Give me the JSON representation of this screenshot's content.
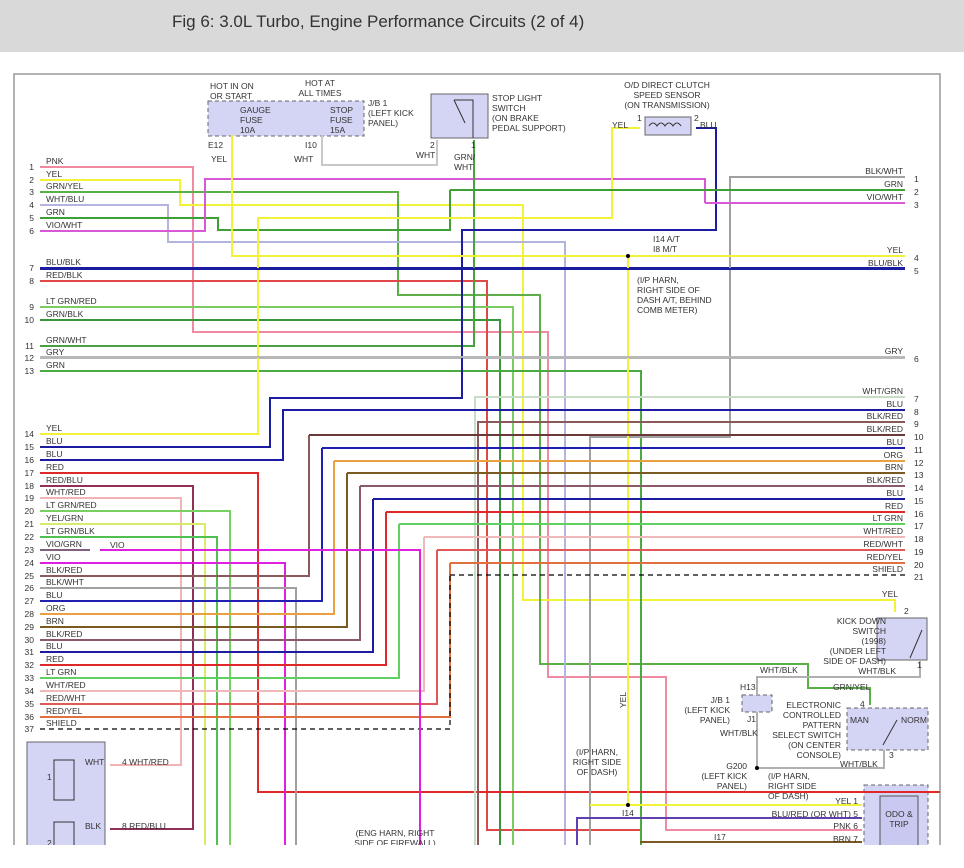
{
  "header": {
    "title": "Fig 6: 3.0L Turbo, Engine Performance Circuits (2 of 4)"
  },
  "left_pins": [
    {
      "num": "1",
      "label": "PNK",
      "color": "#f08aa0"
    },
    {
      "num": "2",
      "label": "YEL",
      "color": "#f2f238"
    },
    {
      "num": "3",
      "label": "GRN/YEL",
      "color": "#5cae48"
    },
    {
      "num": "4",
      "label": "WHT/BLU",
      "color": "#b4b4e0"
    },
    {
      "num": "5",
      "label": "GRN",
      "color": "#3f9f35"
    },
    {
      "num": "6",
      "label": "VIO/WHT",
      "color": "#d858d8"
    },
    {
      "num": "7",
      "label": "BLU/BLK",
      "color": "#1c1ca0"
    },
    {
      "num": "8",
      "label": "RED/BLK",
      "color": "#e04848"
    },
    {
      "num": "9",
      "label": "LT GRN/RED",
      "color": "#7acc62"
    },
    {
      "num": "10",
      "label": "GRN/BLK",
      "color": "#3a963a"
    },
    {
      "num": "11",
      "label": "GRN/WHT",
      "color": "#4aa040"
    },
    {
      "num": "12",
      "label": "GRY",
      "color": "#b8b8b8"
    },
    {
      "num": "13",
      "label": "GRN",
      "color": "#48aa40"
    },
    {
      "num": "14",
      "label": "YEL",
      "color": "#f2f238"
    },
    {
      "num": "15",
      "label": "BLU",
      "color": "#1c1ca0"
    },
    {
      "num": "16",
      "label": "BLU",
      "color": "#1c1ca0"
    },
    {
      "num": "17",
      "label": "RED",
      "color": "#e02828"
    },
    {
      "num": "18",
      "label": "RED/BLU",
      "color": "#903058"
    },
    {
      "num": "19",
      "label": "WHT/RED",
      "color": "#f0b4b4"
    },
    {
      "num": "20",
      "label": "LT GRN/RED",
      "color": "#78d060"
    },
    {
      "num": "21",
      "label": "YEL/GRN",
      "color": "#d8ec6a"
    },
    {
      "num": "22",
      "label": "LT GRN/BLK",
      "color": "#50c050"
    },
    {
      "num": "23",
      "label": "VIO/GRN",
      "color": "#806080"
    },
    {
      "num": "24",
      "label": "VIO",
      "color": "#e020e0"
    },
    {
      "num": "25",
      "label": "BLK/RED",
      "color": "#8a5a5a"
    },
    {
      "num": "26",
      "label": "BLK/WHT",
      "color": "#a0a0a0"
    },
    {
      "num": "27",
      "label": "BLU",
      "color": "#2020b0"
    },
    {
      "num": "28",
      "label": "ORG",
      "color": "#e8a040"
    },
    {
      "num": "29",
      "label": "BRN",
      "color": "#7a5a20"
    },
    {
      "num": "30",
      "label": "BLK/RED",
      "color": "#8a5a6a"
    },
    {
      "num": "31",
      "label": "BLU",
      "color": "#1c1ca0"
    },
    {
      "num": "32",
      "label": "RED",
      "color": "#e02828"
    },
    {
      "num": "33",
      "label": "LT GRN",
      "color": "#60d060"
    },
    {
      "num": "34",
      "label": "WHT/RED",
      "color": "#f0b8b8"
    },
    {
      "num": "35",
      "label": "RED/WHT",
      "color": "#e05858"
    },
    {
      "num": "36",
      "label": "RED/YEL",
      "color": "#e07040"
    },
    {
      "num": "37",
      "label": "SHIELD",
      "color": "#000000"
    }
  ],
  "right_pins": [
    {
      "num": "1",
      "label": "BLK/WHT",
      "color": "#a0a0a0"
    },
    {
      "num": "2",
      "label": "GRN",
      "color": "#3f9f35"
    },
    {
      "num": "3",
      "label": "VIO/WHT",
      "color": "#d858d8"
    },
    {
      "num": "4",
      "label": "YEL",
      "color": "#f2f238"
    },
    {
      "num": "5",
      "label": "BLU/BLK",
      "color": "#1c1ca0"
    },
    {
      "num": "6",
      "label": "GRY",
      "color": "#b8b8b8"
    },
    {
      "num": "7",
      "label": "WHT/GRN",
      "color": "#c8dcc8"
    },
    {
      "num": "8",
      "label": "BLU",
      "color": "#1c1ca0"
    },
    {
      "num": "9",
      "label": "BLK/RED",
      "color": "#8a5a5a"
    },
    {
      "num": "10",
      "label": "BLK/RED",
      "color": "#6a3a3a"
    },
    {
      "num": "11",
      "label": "BLU",
      "color": "#2020b0"
    },
    {
      "num": "12",
      "label": "ORG",
      "color": "#e8a040"
    },
    {
      "num": "13",
      "label": "BRN",
      "color": "#7a5a20"
    },
    {
      "num": "14",
      "label": "BLK/RED",
      "color": "#8a5a6a"
    },
    {
      "num": "15",
      "label": "BLU",
      "color": "#1c1ca0"
    },
    {
      "num": "16",
      "label": "RED",
      "color": "#e02828"
    },
    {
      "num": "17",
      "label": "LT GRN",
      "color": "#60d060"
    },
    {
      "num": "18",
      "label": "WHT/RED",
      "color": "#f0b8b8"
    },
    {
      "num": "19",
      "label": "RED/WHT",
      "color": "#e05858"
    },
    {
      "num": "20",
      "label": "RED/YEL",
      "color": "#e07040"
    },
    {
      "num": "21",
      "label": "SHIELD",
      "color": "#000000"
    }
  ],
  "labels": {
    "hot_on": [
      "HOT IN ON",
      "OR START"
    ],
    "hot_at": [
      "HOT AT",
      "ALL TIMES"
    ],
    "jb1_top": [
      "J/B 1",
      "(LEFT KICK",
      "PANEL)"
    ],
    "gauge_fuse": [
      "GAUGE",
      "FUSE",
      "10A"
    ],
    "stop_fuse": [
      "STOP",
      "FUSE",
      "15A"
    ],
    "e12": [
      "E12"
    ],
    "e12_wire": [
      "YEL"
    ],
    "i10": [
      "I10"
    ],
    "i10_wire": [
      "WHT"
    ],
    "stop_switch": [
      "STOP LIGHT",
      "SWITCH",
      "(ON BRAKE",
      "PEDAL SUPPORT)"
    ],
    "ss_pin2": [
      "2"
    ],
    "ss_pin2_wire": [
      "WHT"
    ],
    "ss_pin1": [
      "1"
    ],
    "ss_pin1_wire": [
      "GRN/",
      "WHT"
    ],
    "od_sensor": [
      "O/D DIRECT CLUTCH",
      "SPEED SENSOR",
      "(ON TRANSMISSION)"
    ],
    "od_yel": [
      "YEL"
    ],
    "od_pin1": [
      "1"
    ],
    "od_pin2": [
      "2"
    ],
    "od_blu": [
      "BLU"
    ],
    "i14_top": [
      "I14 A/T",
      "I8 M/T"
    ],
    "i14_top_note": [
      "(I/P HARN,",
      "RIGHT SIDE OF",
      "DASH A/T, BEHIND",
      "COMB METER)"
    ],
    "kd_yel": [
      "YEL"
    ],
    "kd_pin2": [
      "2"
    ],
    "kd_pin1": [
      "1"
    ],
    "kick_down": [
      "KICK DOWN",
      "SWITCH",
      "(1998)",
      "(UNDER LEFT",
      "SIDE OF DASH)"
    ],
    "kd_whtblk": [
      "WHT/BLK"
    ],
    "h13_whtblk": [
      "WHT/BLK"
    ],
    "grn_yel": [
      "GRN/YEL"
    ],
    "h13": [
      "H13"
    ],
    "jb1_bottom": [
      "J/B 1",
      "(LEFT KICK",
      "PANEL)"
    ],
    "j1": [
      "J1"
    ],
    "j1_whtblk": [
      "WHT/BLK"
    ],
    "select_switch": [
      "ELECTRONIC",
      "CONTROLLED",
      "PATTERN",
      "SELECT SWITCH",
      "(ON CENTER",
      "CONSOLE)"
    ],
    "sel_pin4": [
      "4"
    ],
    "man": [
      "MAN"
    ],
    "norm": [
      "NORM"
    ],
    "sel_pin3": [
      "3"
    ],
    "sel_whtblk": [
      "WHT/BLK"
    ],
    "g200": [
      "G200",
      "(LEFT KICK",
      "PANEL)"
    ],
    "ip_harn_right": [
      "(I/P HARN,",
      "RIGHT SIDE",
      "OF DASH)"
    ],
    "ip_harn_left": [
      "(I/P HARN,",
      "RIGHT SIDE",
      "OF DASH)"
    ],
    "i14_bottom": [
      "I14"
    ],
    "i17": [
      "I17"
    ],
    "odo": [
      "ODO &",
      "TRIP"
    ],
    "odo_p1": [
      "YEL  1"
    ],
    "odo_p5": [
      "BLU/RED (OR WHT)  5"
    ],
    "odo_p6": [
      "PNK  6"
    ],
    "odo_p7": [
      "BRN  7"
    ],
    "eng_harn": [
      "(ENG HARN, RIGHT",
      "SIDE OF FIREWALL)"
    ],
    "yel_vertical": [
      "YEL"
    ],
    "vio": [
      "VIO"
    ],
    "coil1": [
      "1"
    ],
    "coil1_wht": [
      "WHT"
    ],
    "coil1_out": [
      "4  WHT/RED"
    ],
    "coil2_blk": [
      "BLK"
    ],
    "coil2_out": [
      "8  RED/BLU"
    ],
    "coil2": [
      "2"
    ]
  },
  "colors": {
    "component_fill": "#d4d4f4",
    "header_bg": "#d9d9d9",
    "frame": "#999999"
  }
}
